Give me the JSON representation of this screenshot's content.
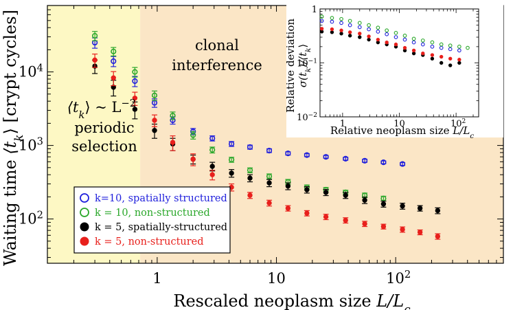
{
  "chart_data": {
    "type": "scatter",
    "xlabel_main": "Rescaled neoplasm size",
    "xlabel_symbol": "L/L",
    "xlabel_sub": "c",
    "ylabel_main": "Waiting time",
    "ylabel_symbol": "⟨t",
    "ylabel_sub": "k",
    "ylabel_close": "⟩",
    "ylabel_unit": "[crypt cycles]",
    "x_scale": "log",
    "y_scale": "log",
    "xlim": [
      0.12,
      800
    ],
    "ylim": [
      25,
      80000
    ],
    "x_ticks": [
      {
        "value": 1,
        "label": "1"
      },
      {
        "value": 10,
        "label": "10"
      },
      {
        "value": 100,
        "label": "10",
        "sup": "2"
      }
    ],
    "y_ticks": [
      {
        "value": 100,
        "label": "10",
        "sup": "2"
      },
      {
        "value": 1000,
        "label": "10",
        "sup": "3"
      },
      {
        "value": 10000,
        "label": "10",
        "sup": "4"
      }
    ],
    "regions": [
      {
        "x_from": 0.12,
        "x_to": 0.72,
        "color": "#fdf8c4",
        "label_lines": [
          "periodic",
          "selection"
        ]
      },
      {
        "x_from": 0.72,
        "x_to": 800,
        "color": "#fbe6c6",
        "label_lines": [
          "clonal",
          "interference"
        ]
      }
    ],
    "annotation": {
      "text": "⟨t",
      "sub": "k",
      "rest": "⟩ ~ L",
      "sup": "−2"
    },
    "series": [
      {
        "name": "k=10, spatially structured",
        "color": "#1f1fdc",
        "marker": "open-circle",
        "x": [
          0.3,
          0.43,
          0.65,
          0.95,
          1.35,
          2.0,
          2.9,
          4.2,
          6.0,
          8.7,
          12.5,
          18,
          26,
          38,
          55,
          79,
          114
        ],
        "y": [
          25000,
          14000,
          7500,
          3800,
          2200,
          1550,
          1250,
          1050,
          950,
          850,
          780,
          740,
          700,
          660,
          620,
          590,
          560
        ],
        "yerr": [
          4000,
          2200,
          1200,
          500,
          250,
          150,
          100,
          80,
          60,
          50,
          40,
          35,
          30,
          30,
          30,
          25,
          25
        ]
      },
      {
        "name": "k = 10, non-structured",
        "color": "#2aa72a",
        "marker": "open-circle",
        "x": [
          0.3,
          0.43,
          0.65,
          0.95,
          1.35,
          2.0,
          2.9,
          4.2,
          6.0,
          8.7,
          12.5,
          18,
          26,
          38,
          55,
          79
        ],
        "y": [
          31000,
          19000,
          10000,
          4800,
          2550,
          1380,
          870,
          640,
          460,
          380,
          320,
          270,
          250,
          230,
          210,
          190
        ],
        "yerr": [
          4500,
          2500,
          1500,
          700,
          300,
          160,
          80,
          50,
          35,
          30,
          25,
          20,
          18,
          16,
          15,
          14
        ]
      },
      {
        "name": "k = 5, spatially-structured",
        "color": "#000000",
        "marker": "filled-circle",
        "x": [
          0.3,
          0.43,
          0.65,
          0.95,
          1.35,
          2.0,
          2.9,
          4.2,
          6.0,
          8.7,
          12.5,
          18,
          26,
          38,
          55,
          79,
          114,
          160,
          225
        ],
        "y": [
          12000,
          6200,
          3100,
          1600,
          1050,
          650,
          520,
          420,
          360,
          310,
          280,
          250,
          230,
          210,
          180,
          160,
          150,
          140,
          130
        ],
        "yerr": [
          2500,
          1500,
          800,
          350,
          200,
          90,
          70,
          50,
          40,
          35,
          30,
          25,
          22,
          20,
          18,
          15,
          14,
          12,
          12
        ]
      },
      {
        "name": "k = 5, non-structured",
        "color": "#e8201c",
        "marker": "filled-circle",
        "x": [
          0.3,
          0.43,
          0.65,
          0.95,
          1.35,
          2.0,
          2.9,
          4.2,
          6.0,
          8.7,
          12.5,
          18,
          26,
          38,
          55,
          79,
          114,
          160,
          225
        ],
        "y": [
          14500,
          8300,
          4400,
          2200,
          1100,
          650,
          400,
          270,
          210,
          165,
          140,
          120,
          107,
          96,
          86,
          79,
          72,
          66,
          58
        ],
        "yerr": [
          3000,
          1800,
          900,
          400,
          250,
          120,
          60,
          30,
          20,
          15,
          12,
          10,
          9,
          8,
          7,
          6,
          6,
          5,
          5
        ]
      }
    ],
    "legend": {
      "placement": "bottom-left"
    },
    "inset": {
      "xlabel_main": "Relative neoplasm size",
      "xlabel_symbol": "L/L",
      "xlabel_sub": "c",
      "ylabel_line1": "Relative deviation",
      "ylabel_line2": "σ(t",
      "ylabel_line2_sub": "k",
      "ylabel_line2_rest": ")/⟨t",
      "ylabel_line2_sub2": "k",
      "ylabel_line2_end": "⟩",
      "x_scale": "log",
      "y_scale": "log",
      "xlim": [
        0.4,
        250
      ],
      "ylim": [
        0.01,
        1
      ],
      "x_ticks": [
        {
          "value": 1,
          "label": "1"
        },
        {
          "value": 10,
          "label": "10"
        },
        {
          "value": 100,
          "label": "10",
          "sup": "2"
        }
      ],
      "y_ticks": [
        {
          "value": 1,
          "label": "1"
        },
        {
          "value": 0.1,
          "label": "10",
          "sup": "−1"
        },
        {
          "value": 0.01,
          "label": "10",
          "sup": "−2"
        }
      ],
      "series": [
        {
          "name": "k=10, spatially structured",
          "x": [
            0.3,
            0.43,
            0.65,
            0.95,
            1.35,
            2.0,
            2.9,
            4.2,
            6.0,
            8.7,
            12.5,
            18,
            26,
            38,
            55,
            79,
            114
          ],
          "y": [
            0.62,
            0.6,
            0.58,
            0.55,
            0.5,
            0.46,
            0.42,
            0.38,
            0.34,
            0.3,
            0.27,
            0.24,
            0.22,
            0.2,
            0.19,
            0.18,
            0.17
          ]
        },
        {
          "name": "k = 10, non-structured",
          "x": [
            0.3,
            0.43,
            0.65,
            0.95,
            1.35,
            2.0,
            2.9,
            4.2,
            6.0,
            8.7,
            12.5,
            18,
            26,
            38,
            55,
            79,
            114,
            160
          ],
          "y": [
            0.75,
            0.72,
            0.68,
            0.65,
            0.6,
            0.55,
            0.5,
            0.45,
            0.4,
            0.36,
            0.32,
            0.28,
            0.26,
            0.24,
            0.22,
            0.21,
            0.2,
            0.19
          ]
        },
        {
          "name": "k = 5, spatially-structured",
          "x": [
            0.3,
            0.43,
            0.65,
            0.95,
            1.35,
            2.0,
            2.9,
            4.2,
            6.0,
            8.7,
            12.5,
            18,
            26,
            38,
            55,
            79,
            114
          ],
          "y": [
            0.4,
            0.38,
            0.37,
            0.35,
            0.32,
            0.3,
            0.27,
            0.24,
            0.22,
            0.2,
            0.17,
            0.15,
            0.14,
            0.12,
            0.1,
            0.09,
            0.1
          ]
        },
        {
          "name": "k = 5, non-structured",
          "x": [
            0.3,
            0.43,
            0.65,
            0.95,
            1.35,
            2.0,
            2.9,
            4.2,
            6.0,
            8.7,
            12.5,
            18,
            26,
            38,
            55,
            79,
            114
          ],
          "y": [
            0.45,
            0.43,
            0.42,
            0.4,
            0.37,
            0.35,
            0.31,
            0.27,
            0.24,
            0.22,
            0.19,
            0.17,
            0.15,
            0.14,
            0.13,
            0.12,
            0.115
          ]
        }
      ]
    }
  }
}
